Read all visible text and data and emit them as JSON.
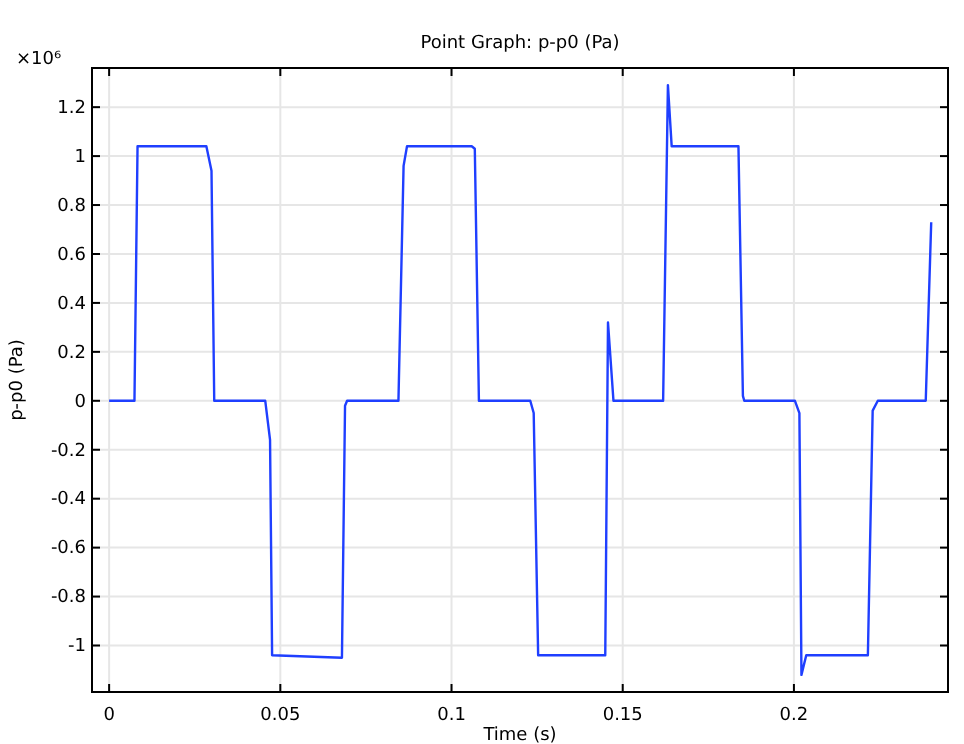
{
  "chart_data": {
    "type": "line",
    "title": "Point Graph: p-p0 (Pa)",
    "xlabel": "Time (s)",
    "ylabel": "p-p0 (Pa)",
    "annotations": [
      "×10⁶"
    ],
    "x": [
      0,
      0.0074,
      0.0083,
      0.0284,
      0.0299,
      0.0307,
      0.0456,
      0.047,
      0.0476,
      0.068,
      0.0689,
      0.0695,
      0.0845,
      0.086,
      0.087,
      0.1059,
      0.1068,
      0.108,
      0.123,
      0.124,
      0.1253,
      0.1449,
      0.1457,
      0.1473,
      0.1618,
      0.1632,
      0.1643,
      0.1838,
      0.1851,
      0.1855,
      0.2003,
      0.2016,
      0.2022,
      0.2036,
      0.2216,
      0.223,
      0.2245,
      0.2385,
      0.2401
    ],
    "series": [
      {
        "color": "#1f3fff",
        "values": [
          0,
          0,
          1.04,
          1.04,
          0.94,
          0,
          0,
          -0.16,
          -1.04,
          -1.05,
          -0.02,
          0,
          0,
          0.96,
          1.04,
          1.04,
          1.03,
          0,
          0,
          -0.05,
          -1.04,
          -1.04,
          0.32,
          0,
          0,
          1.29,
          1.04,
          1.04,
          0.02,
          0,
          0,
          -0.05,
          -1.12,
          -1.04,
          -1.04,
          -0.04,
          0,
          0,
          0.73
        ]
      }
    ],
    "xlim": [
      -0.005,
      0.245
    ],
    "xticks": [
      0,
      0.05,
      0.1,
      0.15,
      0.2
    ],
    "ylim": [
      -1.19,
      1.36
    ],
    "yticks": [
      -1,
      -0.8,
      -0.6,
      -0.4,
      -0.2,
      0,
      0.2,
      0.4,
      0.6,
      0.8,
      1,
      1.2
    ],
    "grid": true,
    "marker": "none",
    "line_style": "solid"
  }
}
